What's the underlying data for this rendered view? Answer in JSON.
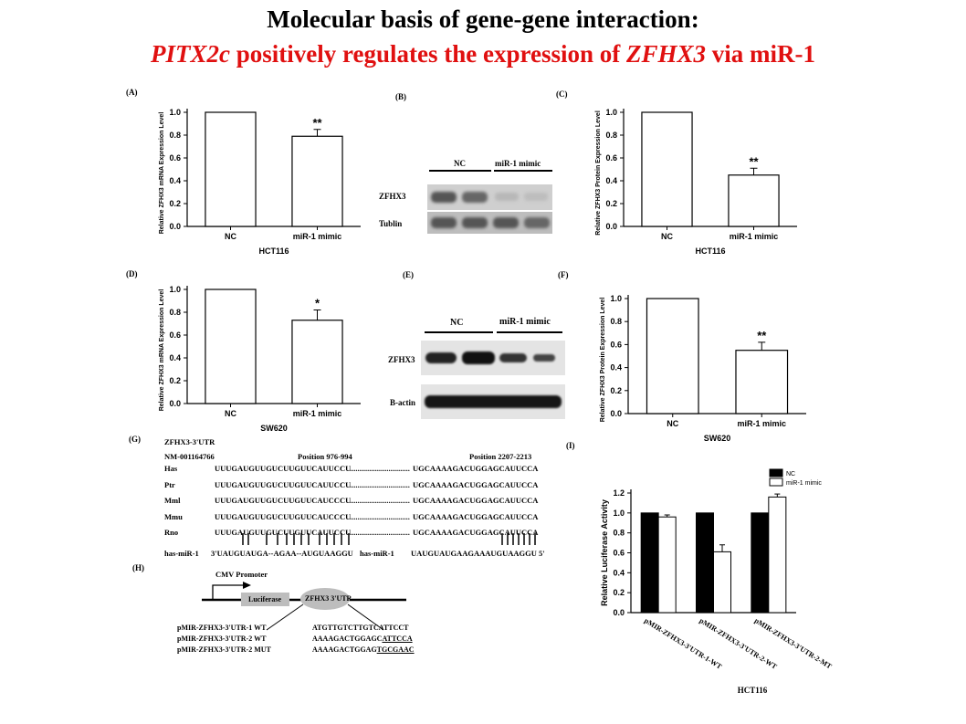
{
  "title": {
    "line1": "Molecular basis of gene-gene interaction:",
    "gene1": "PITX2c",
    "mid": " positively regulates the expression of ",
    "gene2": "ZFHX3",
    "end": " via miR-1"
  },
  "panels": {
    "A": "(A)",
    "B": "(B)",
    "C": "(C)",
    "D": "(D)",
    "E": "(E)",
    "F": "(F)",
    "G": "(G)",
    "H": "(H)",
    "I": "(I)"
  },
  "chart_data": [
    {
      "id": "A",
      "type": "bar",
      "categories": [
        "NC",
        "miR-1 mimic"
      ],
      "values": [
        1.0,
        0.79
      ],
      "errors": [
        0,
        0.06
      ],
      "significance": [
        "",
        "**"
      ],
      "ylabel": "Relative ZFHX3 mRNA Expression Level",
      "xlabel": "HCT116",
      "ylim": [
        0,
        1.0
      ],
      "yticks": [
        "0.0",
        "0.2",
        "0.4",
        "0.6",
        "0.8",
        "1.0"
      ]
    },
    {
      "id": "C",
      "type": "bar",
      "categories": [
        "NC",
        "miR-1 mimic"
      ],
      "values": [
        1.0,
        0.45
      ],
      "errors": [
        0,
        0.06
      ],
      "significance": [
        "",
        "**"
      ],
      "ylabel": "Relative ZFHX3 Protein Expression Level",
      "xlabel": "HCT116",
      "ylim": [
        0,
        1.0
      ],
      "yticks": [
        "0.0",
        "0.2",
        "0.4",
        "0.6",
        "0.8",
        "1.0"
      ]
    },
    {
      "id": "D",
      "type": "bar",
      "categories": [
        "NC",
        "miR-1 mimic"
      ],
      "values": [
        1.0,
        0.73
      ],
      "errors": [
        0,
        0.09
      ],
      "significance": [
        "",
        "*"
      ],
      "ylabel": "Relative ZFHX3 mRNA Expression Level",
      "xlabel": "SW620",
      "ylim": [
        0,
        1.0
      ],
      "yticks": [
        "0.0",
        "0.2",
        "0.4",
        "0.6",
        "0.8",
        "1.0"
      ]
    },
    {
      "id": "F",
      "type": "bar",
      "categories": [
        "NC",
        "miR-1 mimic"
      ],
      "values": [
        1.0,
        0.55
      ],
      "errors": [
        0,
        0.07
      ],
      "significance": [
        "",
        "**"
      ],
      "ylabel": "Relative ZFHX3 Protein Expression Level",
      "xlabel": "SW620",
      "ylim": [
        0,
        1.0
      ],
      "yticks": [
        "0.0",
        "0.2",
        "0.4",
        "0.6",
        "0.8",
        "1.0"
      ]
    },
    {
      "id": "I",
      "type": "bar",
      "categories": [
        "pMIR-ZFHX3-3'UTR-1-WT",
        "pMIR-ZFHX3-3'UTR-2-WT",
        "pMIR-ZFHX3-3'UTR-2-MT"
      ],
      "series": [
        {
          "name": "NC",
          "values": [
            1.0,
            1.0,
            1.0
          ],
          "color": "#000000"
        },
        {
          "name": "miR-1 mimic",
          "values": [
            0.96,
            0.61,
            1.16
          ],
          "errors": [
            0.02,
            0.07,
            0.03
          ],
          "color": "#ffffff"
        }
      ],
      "ylabel": "Relative Luciferase Activity",
      "xlabel": "HCT116",
      "ylim": [
        0,
        1.2
      ],
      "yticks": [
        "0.0",
        "0.2",
        "0.4",
        "0.6",
        "0.8",
        "1.0",
        "1.2"
      ],
      "legend": "top"
    }
  ],
  "blots": {
    "B": {
      "groups": [
        "NC",
        "miR-1 mimic"
      ],
      "rows": [
        "ZFHX3",
        "Tublin"
      ]
    },
    "E": {
      "groups": [
        "NC",
        "miR-1 mimic"
      ],
      "rows": [
        "ZFHX3",
        "B-actin"
      ]
    }
  },
  "alignment": {
    "header": "ZFHX3-3'UTR",
    "accession": "NM-001164766",
    "pos1": "Position 976-994",
    "pos2": "Position 2207-2213",
    "rows": [
      {
        "sp": "Has",
        "s1": "UUUGAUGUUGUCUUGUUCAUUCCU",
        "dots": "...............................",
        "s2": "UGCAAAAGACUGGAGCAUUCCA"
      },
      {
        "sp": "Ptr",
        "s1": "UUUGAUGUUGUCUUGUUCAUUCCU",
        "dots": "...............................",
        "s2": "UGCAAAAGACUGGAGCAUUCCA"
      },
      {
        "sp": "Mml",
        "s1": "UUUGAUGUUGUCUUGUUCAUCCCU",
        "dots": "...............................",
        "s2": "UGCAAAAGACUGGAGCAUUCCA"
      },
      {
        "sp": "Mmu",
        "s1": "UUUGAUGUUGUCUUGUUCAUCCCU",
        "dots": "...............................",
        "s2": "UGCAAAAGACUGGAGCAUUCCA"
      },
      {
        "sp": "Rno",
        "s1": "UUUGAUGUUGUCUUGUUCAUUCCU",
        "dots": "...............................",
        "s2": "UGCAAAAGACUGGAGCAUUCCA"
      }
    ],
    "mir_label1": "has-miR-1",
    "mir_seq1": "3'UAUGUAUGA--AGAA--AUGUAAGGU",
    "mir_label2": "has-miR-1",
    "mir_seq2": "UAUGUAUGAAGAAAUGUAAGGU 5'"
  },
  "construct": {
    "promoter": "CMV Promoter",
    "luciferase": "Luciferase",
    "utr": "ZFHX3 3'UTR",
    "rows": [
      {
        "name": "pMIR-ZFHX3-3'UTR-1 WT",
        "seq": "ATGTTGTCTTGTCATTCCT",
        "ul": ""
      },
      {
        "name": "pMIR-ZFHX3-3'UTR-2 WT",
        "seq": "AAAAGACTGGAGC",
        "ul": "ATTCCA"
      },
      {
        "name": "pMIR-ZFHX3-3'UTR-2 MUT",
        "seq": "AAAAGACTGGAG",
        "ul": "TGCGAAC"
      }
    ]
  }
}
